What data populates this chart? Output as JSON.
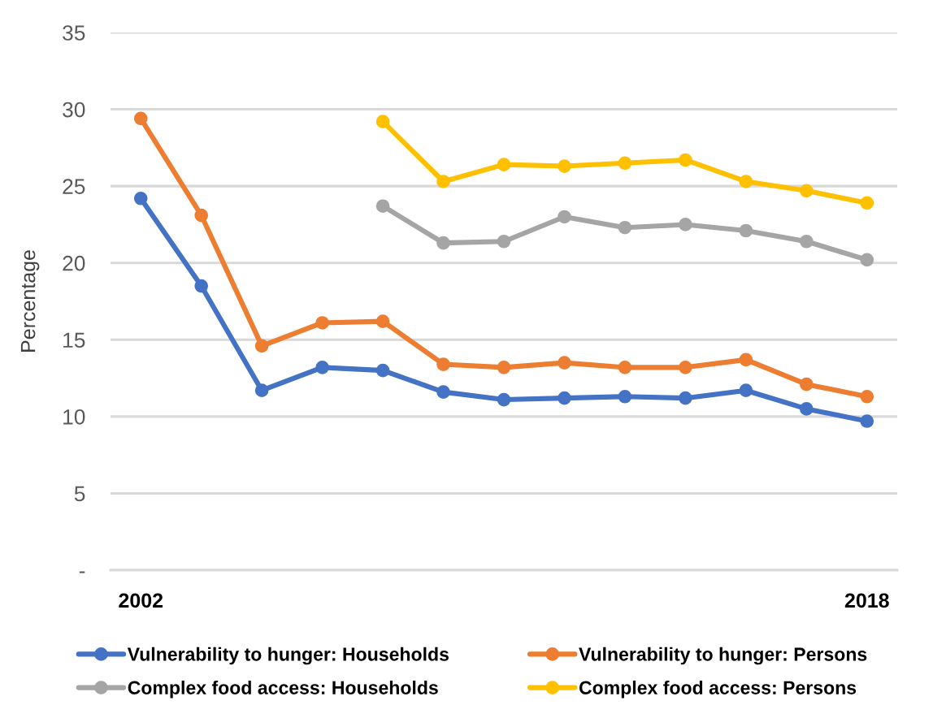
{
  "chart_data": {
    "type": "line",
    "ylabel": "Percentage",
    "categories": [
      "2002",
      null,
      null,
      null,
      null,
      null,
      null,
      null,
      null,
      null,
      null,
      null,
      "2018"
    ],
    "ylim": [
      0,
      35
    ],
    "yticks": [
      {
        "value": 0,
        "label": "-"
      },
      5,
      10,
      15,
      20,
      25,
      30,
      35
    ],
    "grid": "y",
    "legend": "bottom",
    "marker": "circle",
    "line_style": "solid",
    "series": [
      {
        "name": "Vulnerability to hunger: Households",
        "color": "#4472c4",
        "values": [
          24.2,
          18.5,
          11.7,
          13.2,
          13.0,
          11.6,
          11.1,
          11.2,
          11.3,
          11.2,
          11.7,
          10.5,
          9.7
        ]
      },
      {
        "name": "Vulnerability to hunger: Persons",
        "color": "#ed7d31",
        "values": [
          29.4,
          23.1,
          14.6,
          16.1,
          16.2,
          13.4,
          13.2,
          13.5,
          13.2,
          13.2,
          13.7,
          12.1,
          11.3
        ]
      },
      {
        "name": "Complex food access: Households",
        "color": "#a5a5a5",
        "values": [
          null,
          null,
          null,
          null,
          23.7,
          21.3,
          21.4,
          23.0,
          22.3,
          22.5,
          22.1,
          21.4,
          20.2
        ]
      },
      {
        "name": "Complex food access: Persons",
        "color": "#ffc000",
        "values": [
          null,
          null,
          null,
          null,
          29.2,
          25.3,
          26.4,
          26.3,
          26.5,
          26.7,
          25.3,
          24.7,
          23.9
        ]
      }
    ]
  }
}
